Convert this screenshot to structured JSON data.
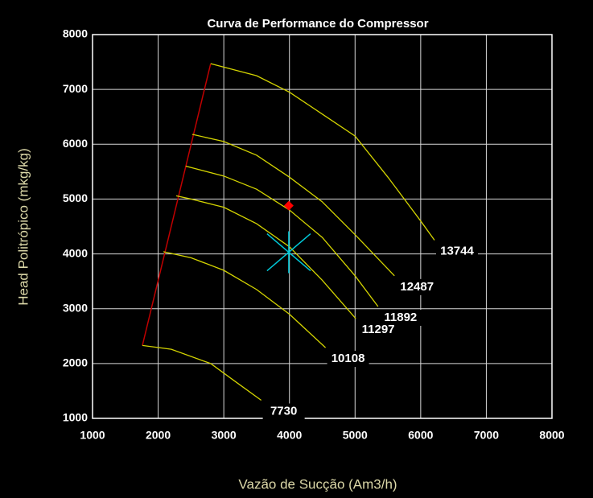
{
  "chart_data": {
    "type": "line",
    "title": "Curva de Performance do Compressor",
    "x_label": "Vazão de Sucção (Am3/h)",
    "y_label": "Head Politrópico (mkg/kg)",
    "xlim": [
      1000,
      8000
    ],
    "ylim": [
      1000,
      8000
    ],
    "xticks": [
      1000,
      2000,
      3000,
      4000,
      5000,
      6000,
      7000,
      8000
    ],
    "yticks": [
      1000,
      2000,
      3000,
      4000,
      5000,
      6000,
      7000,
      8000
    ],
    "grid": true,
    "series": [
      {
        "name": "13744",
        "color": "#d4d400",
        "x": [
          2800,
          3500,
          4000,
          4500,
          5000,
          5500,
          6000,
          6210
        ],
        "values": [
          7470,
          7250,
          6950,
          6550,
          6150,
          5400,
          4600,
          4250
        ]
      },
      {
        "name": "12487",
        "color": "#d4d400",
        "x": [
          2520,
          3000,
          3500,
          4000,
          4500,
          5000,
          5600
        ],
        "values": [
          6180,
          6050,
          5800,
          5400,
          4950,
          4350,
          3600
        ]
      },
      {
        "name": "11892",
        "color": "#d4d400",
        "x": [
          2420,
          3000,
          3500,
          4000,
          4500,
          5000,
          5350
        ],
        "values": [
          5600,
          5420,
          5180,
          4800,
          4300,
          3600,
          3040
        ]
      },
      {
        "name": "11297",
        "color": "#d4d400",
        "x": [
          2275,
          2500,
          3000,
          3500,
          4000,
          4500,
          5010
        ],
        "values": [
          5060,
          5000,
          4850,
          4550,
          4130,
          3520,
          2820
        ]
      },
      {
        "name": "10108",
        "color": "#d4d400",
        "x": [
          2080,
          2500,
          3000,
          3500,
          4000,
          4550
        ],
        "values": [
          4040,
          3930,
          3700,
          3350,
          2900,
          2290
        ]
      },
      {
        "name": "7730",
        "color": "#d4d400",
        "x": [
          1760,
          2200,
          2800,
          3200,
          3570
        ],
        "values": [
          2330,
          2260,
          2000,
          1650,
          1330
        ]
      }
    ],
    "surge_line": {
      "color": "#c00000",
      "x": [
        1760,
        2800
      ],
      "values": [
        2330,
        7470
      ]
    },
    "marker_point": {
      "color": "#ff0000",
      "x": 3990,
      "value": 4880
    },
    "star_point": {
      "color": "#00c8d8",
      "x": 3990,
      "value": 4030
    }
  }
}
